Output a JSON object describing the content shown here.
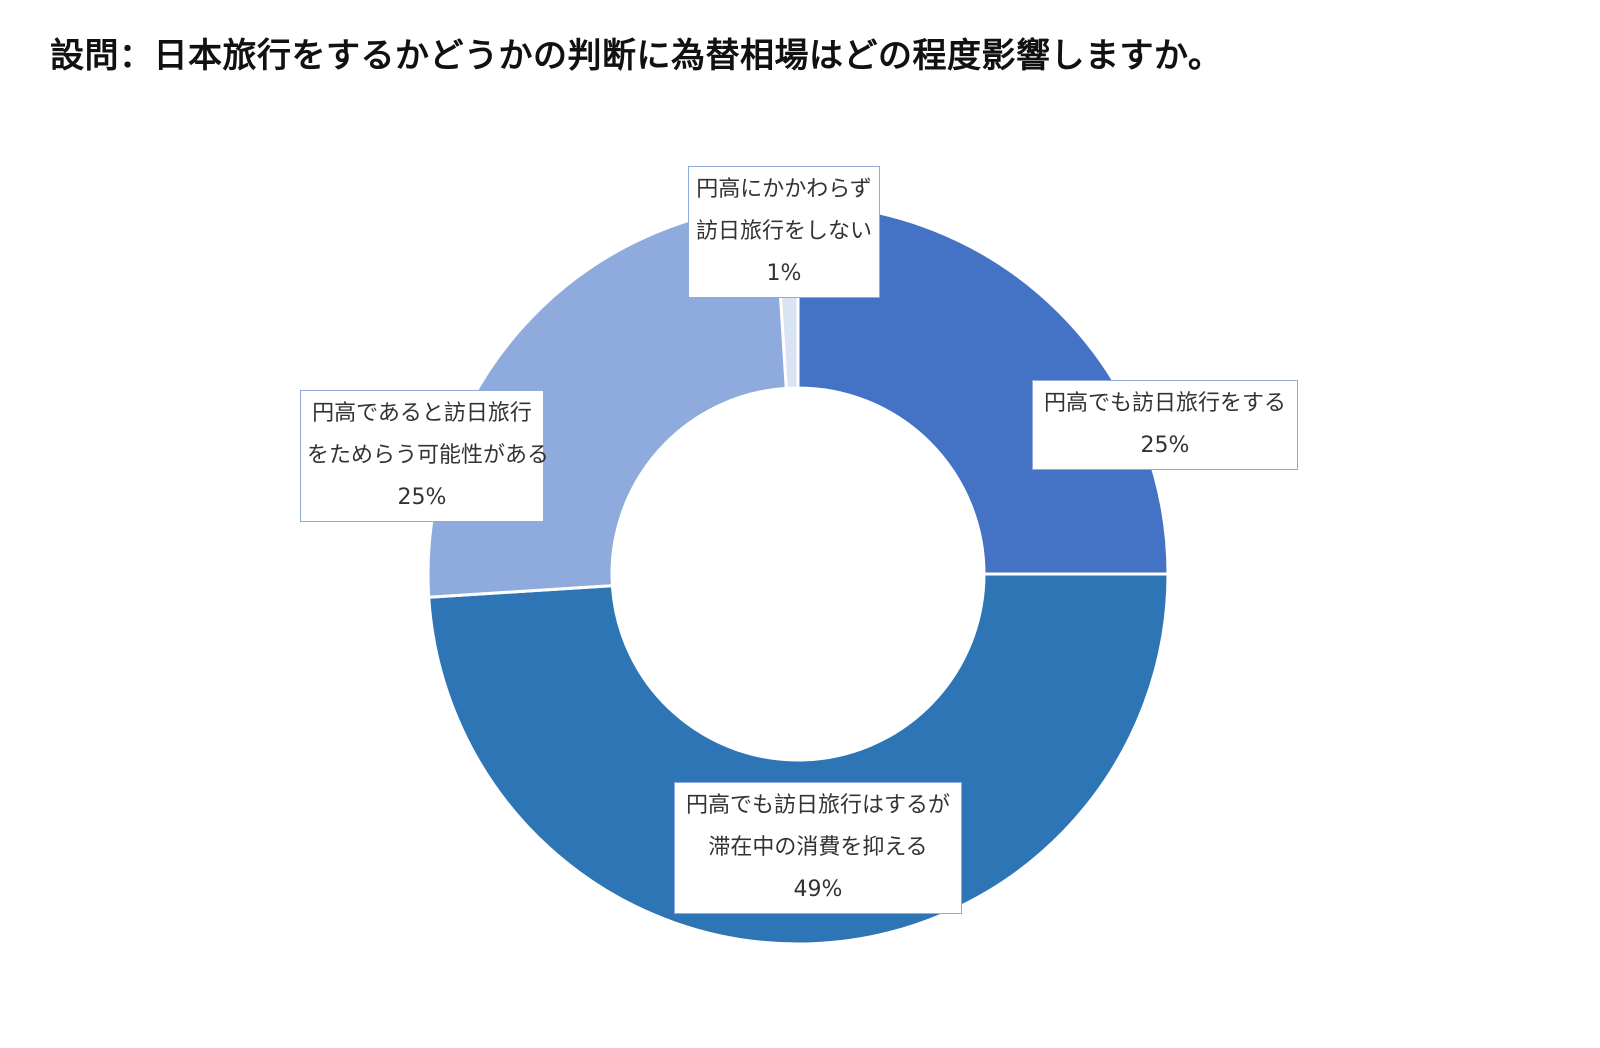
{
  "page": {
    "title": "設問：日本旅行をするかどうかの判断に為替相場はどの程度影響しますか。"
  },
  "chart_data": {
    "type": "donut",
    "title": "設問：日本旅行をするかどうかの判断に為替相場はどの程度影響しますか。",
    "unit": "%",
    "start_angle_deg": 0,
    "direction": "clockwise",
    "series": [
      {
        "name": "円高でも訪日旅行をする",
        "label_lines": [
          "円高でも訪日旅行をする"
        ],
        "value": 25,
        "value_label": "25%",
        "color": "#4472c4"
      },
      {
        "name": "円高でも訪日旅行はするが滞在中の消費を抑える",
        "label_lines": [
          "円高でも訪日旅行はするが",
          "滞在中の消費を抑える"
        ],
        "value": 49,
        "value_label": "49%",
        "color": "#2e75b6"
      },
      {
        "name": "円高であると訪日旅行をためらう可能性がある",
        "label_lines": [
          "円高であると訪日旅行",
          "をためらう可能性がある"
        ],
        "value": 25,
        "value_label": "25%",
        "color": "#8faadc"
      },
      {
        "name": "円高にかかわらず訪日旅行をしない",
        "label_lines": [
          "円高にかかわらず",
          "訪日旅行をしない"
        ],
        "value": 1,
        "value_label": "1%",
        "color": "#dae3f3"
      }
    ],
    "legend": "none",
    "label_border_color": "#8faadc"
  }
}
